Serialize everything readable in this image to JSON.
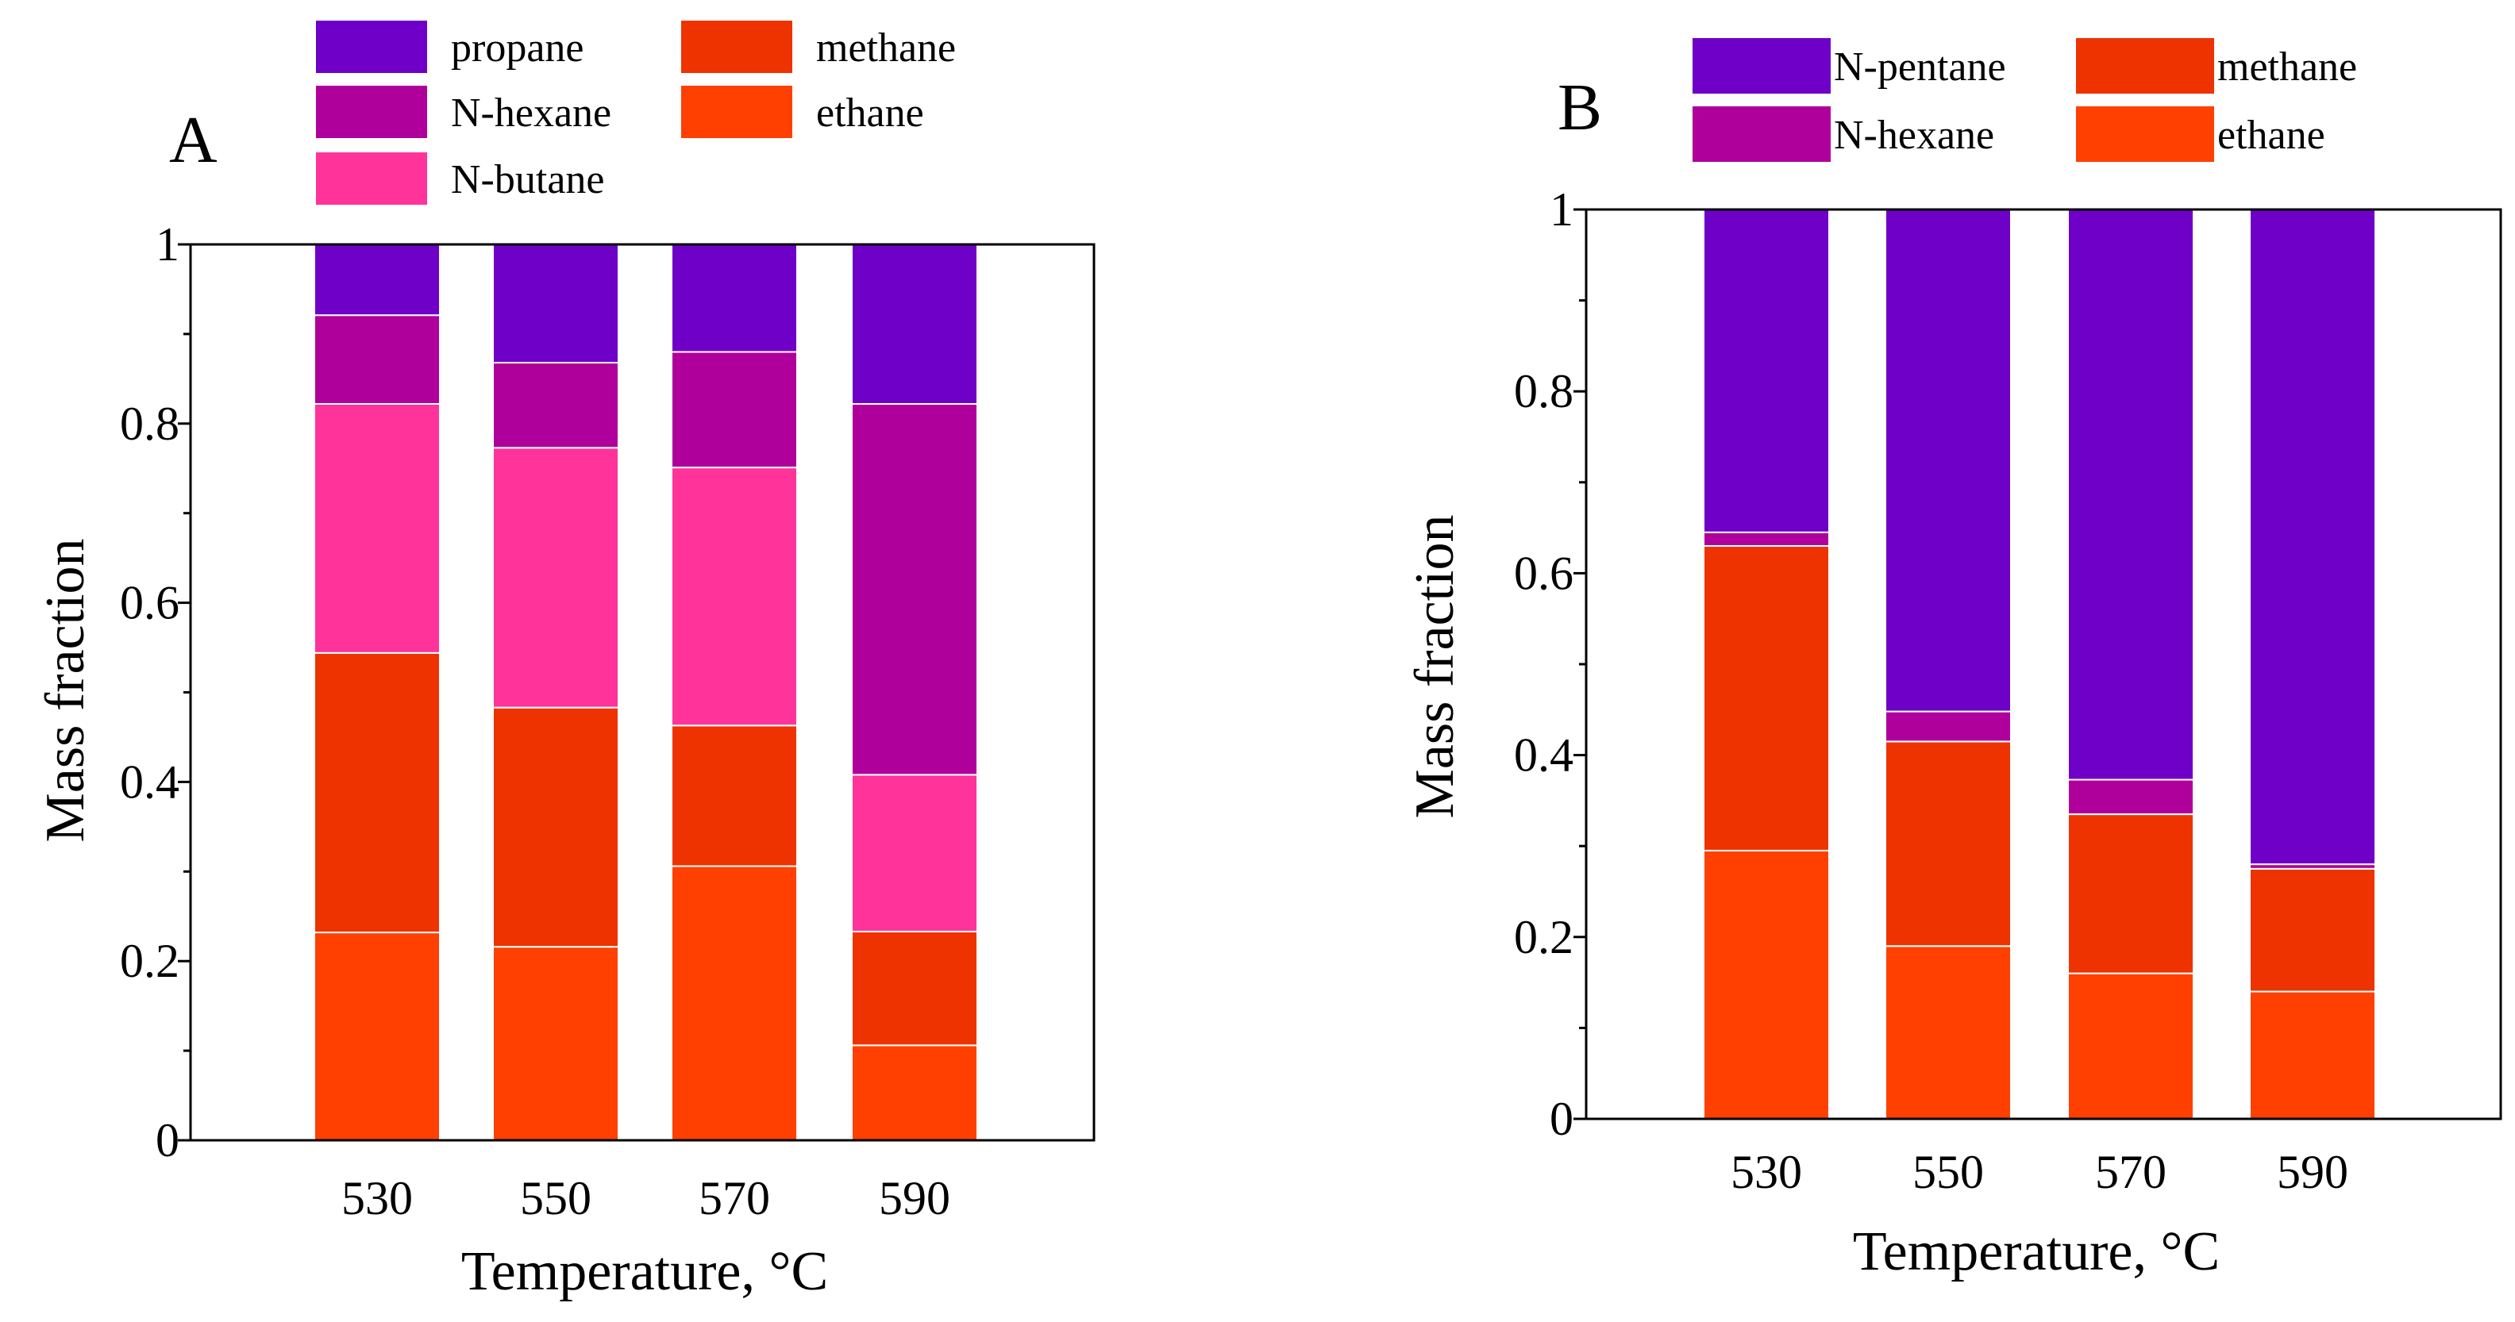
{
  "chart_data": [
    {
      "type": "bar",
      "stacked": true,
      "panel_label": "A",
      "xlabel": "Temperature, °C",
      "ylabel": "Mass fraction",
      "ylim": [
        0,
        1
      ],
      "yticks": [
        0,
        0.2,
        0.4,
        0.6,
        0.8,
        1
      ],
      "ytick_labels": [
        "0",
        "0.2",
        "0.4",
        "0.6",
        "0.8",
        "1"
      ],
      "categories": [
        "530",
        "550",
        "570",
        "590"
      ],
      "legend": [
        "propane",
        "N-hexane",
        "N-butane",
        "methane",
        "ethane"
      ],
      "series": [
        {
          "name": "ethane",
          "color": "#ff4000",
          "values": [
            0.232,
            0.216,
            0.306,
            0.106
          ]
        },
        {
          "name": "methane",
          "color": "#ee3300",
          "values": [
            0.312,
            0.267,
            0.157,
            0.127
          ]
        },
        {
          "name": "N-butane",
          "color": "#ff3399",
          "values": [
            0.278,
            0.29,
            0.288,
            0.175
          ]
        },
        {
          "name": "N-hexane",
          "color": "#b0009b",
          "values": [
            0.099,
            0.095,
            0.129,
            0.414
          ]
        },
        {
          "name": "propane",
          "color": "#6e00c8",
          "values": [
            0.079,
            0.132,
            0.12,
            0.178
          ]
        }
      ]
    },
    {
      "type": "bar",
      "stacked": true,
      "panel_label": "B",
      "xlabel": "Temperature, °C",
      "ylabel": "Mass fraction",
      "ylim": [
        0,
        1
      ],
      "yticks": [
        0,
        0.2,
        0.4,
        0.6,
        0.8,
        1
      ],
      "ytick_labels": [
        "0",
        "0.2",
        "0.4",
        "0.6",
        "0.8",
        "1"
      ],
      "categories": [
        "530",
        "550",
        "570",
        "590"
      ],
      "legend": [
        "N-pentane",
        "N-hexane",
        "methane",
        "ethane"
      ],
      "series": [
        {
          "name": "ethane",
          "color": "#ff4000",
          "values": [
            0.295,
            0.19,
            0.16,
            0.14
          ]
        },
        {
          "name": "methane",
          "color": "#ee3300",
          "values": [
            0.335,
            0.225,
            0.175,
            0.135
          ]
        },
        {
          "name": "N-hexane",
          "color": "#b0009b",
          "values": [
            0.015,
            0.033,
            0.038,
            0.005
          ]
        },
        {
          "name": "N-pentane",
          "color": "#6e00c8",
          "values": [
            0.355,
            0.552,
            0.627,
            0.72
          ]
        }
      ]
    }
  ]
}
